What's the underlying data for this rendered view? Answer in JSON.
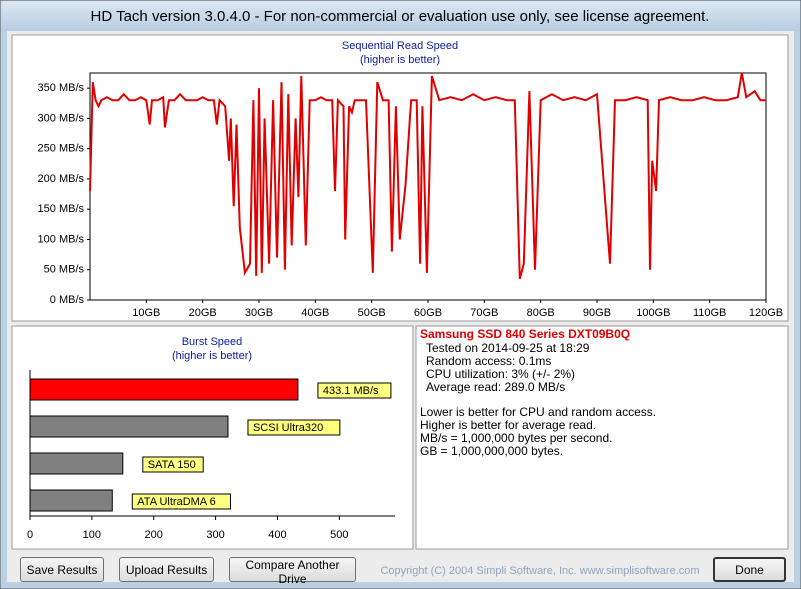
{
  "window": {
    "title": "HD Tach version 3.0.4.0  - For non-commercial or evaluation use only, see license agreement."
  },
  "chart_data": [
    {
      "type": "line",
      "title": "Sequential Read Speed",
      "subtitle": "(higher is better)",
      "color": "#e00000",
      "x": [
        0,
        0.5,
        1,
        1.5,
        2,
        3,
        4,
        5,
        6,
        7,
        8,
        9,
        10,
        10.6,
        11,
        12,
        13,
        13.3,
        14,
        15,
        16,
        17,
        18,
        19,
        20,
        21,
        22,
        22.5,
        23,
        24,
        24.7,
        25,
        25.5,
        26,
        26.6,
        27.5,
        28.4,
        29,
        29.5,
        30,
        30.5,
        31,
        31.8,
        32.5,
        33.2,
        34,
        34.6,
        35.2,
        35.8,
        36.5,
        37,
        37.5,
        38.3,
        39,
        40,
        41,
        42,
        43,
        43.5,
        44,
        45,
        45.3,
        46,
        46.5,
        47,
        48,
        49,
        50.2,
        51,
        52,
        53,
        53.6,
        54.3,
        55,
        56,
        57,
        58,
        58.6,
        59,
        59.8,
        60.7,
        62,
        64,
        66,
        68,
        70,
        72,
        74,
        75.4,
        76.3,
        77,
        78,
        79,
        80,
        82,
        84,
        86,
        88,
        90,
        92.3,
        93.2,
        95,
        97,
        99,
        99.4,
        99.8,
        100.5,
        101,
        103,
        105,
        107,
        109,
        111,
        113,
        115,
        115.7,
        116.5,
        118,
        119,
        120
      ],
      "values": [
        180,
        360,
        330,
        320,
        330,
        335,
        330,
        330,
        340,
        330,
        330,
        335,
        330,
        290,
        330,
        330,
        335,
        285,
        330,
        330,
        340,
        330,
        330,
        330,
        335,
        330,
        330,
        290,
        330,
        320,
        230,
        300,
        155,
        290,
        120,
        45,
        60,
        330,
        40,
        350,
        45,
        300,
        60,
        330,
        70,
        360,
        50,
        340,
        90,
        300,
        170,
        370,
        90,
        330,
        330,
        335,
        330,
        330,
        180,
        330,
        320,
        100,
        320,
        310,
        330,
        330,
        330,
        45,
        360,
        330,
        330,
        80,
        320,
        100,
        190,
        330,
        330,
        60,
        320,
        45,
        370,
        330,
        335,
        330,
        340,
        330,
        335,
        330,
        330,
        35,
        60,
        345,
        50,
        330,
        340,
        330,
        335,
        330,
        340,
        60,
        330,
        330,
        335,
        330,
        50,
        230,
        180,
        330,
        335,
        330,
        330,
        335,
        330,
        330,
        335,
        375,
        335,
        345,
        330,
        330
      ],
      "xlim": [
        0,
        120
      ],
      "ylim": [
        0,
        375
      ],
      "xticks": [
        {
          "value": 10,
          "label": "10GB"
        },
        {
          "value": 20,
          "label": "20GB"
        },
        {
          "value": 30,
          "label": "30GB"
        },
        {
          "value": 40,
          "label": "40GB"
        },
        {
          "value": 50,
          "label": "50GB"
        },
        {
          "value": 60,
          "label": "60GB"
        },
        {
          "value": 70,
          "label": "70GB"
        },
        {
          "value": 80,
          "label": "80GB"
        },
        {
          "value": 90,
          "label": "90GB"
        },
        {
          "value": 100,
          "label": "100GB"
        },
        {
          "value": 110,
          "label": "110GB"
        },
        {
          "value": 120,
          "label": "120GB"
        }
      ],
      "yticks": [
        {
          "value": 0,
          "label": "0 MB/s"
        },
        {
          "value": 50,
          "label": "50 MB/s"
        },
        {
          "value": 100,
          "label": "100 MB/s"
        },
        {
          "value": 150,
          "label": "150 MB/s"
        },
        {
          "value": 200,
          "label": "200 MB/s"
        },
        {
          "value": 250,
          "label": "250 MB/s"
        },
        {
          "value": 300,
          "label": "300 MB/s"
        },
        {
          "value": 350,
          "label": "350 MB/s"
        }
      ],
      "grid": false
    },
    {
      "type": "hbar",
      "title": "Burst Speed",
      "subtitle": "(higher is better)",
      "categories": [
        null,
        "SCSI Ultra320",
        "SATA 150",
        "ATA UltraDMA 6"
      ],
      "values": [
        433.1,
        320,
        150,
        133
      ],
      "value_labels": [
        "433.1 MB/s",
        null,
        null,
        null
      ],
      "colors": [
        "#ff0000",
        "#808080",
        "#808080",
        "#808080"
      ],
      "xlim": [
        0,
        590
      ],
      "xticks": [
        0,
        100,
        200,
        300,
        400,
        500
      ]
    }
  ],
  "info": {
    "drive": "Samsung SSD 840 Series DXT09B0Q",
    "stats": [
      "Tested on 2014-09-25 at 18:29",
      "Random access: 0.1ms",
      "CPU utilization: 3% (+/- 2%)",
      "Average read: 289.0 MB/s"
    ],
    "notes": [
      "Lower is better for CPU and random access.",
      "Higher is better for average read.",
      "MB/s = 1,000,000 bytes per second.",
      "GB = 1,000,000,000 bytes."
    ]
  },
  "buttons": [
    "Save Results",
    "Upload Results",
    "Compare Another Drive",
    "Done"
  ],
  "copyright": "Copyright (C) 2004 Simpli Software, Inc. www.simplisoftware.com"
}
